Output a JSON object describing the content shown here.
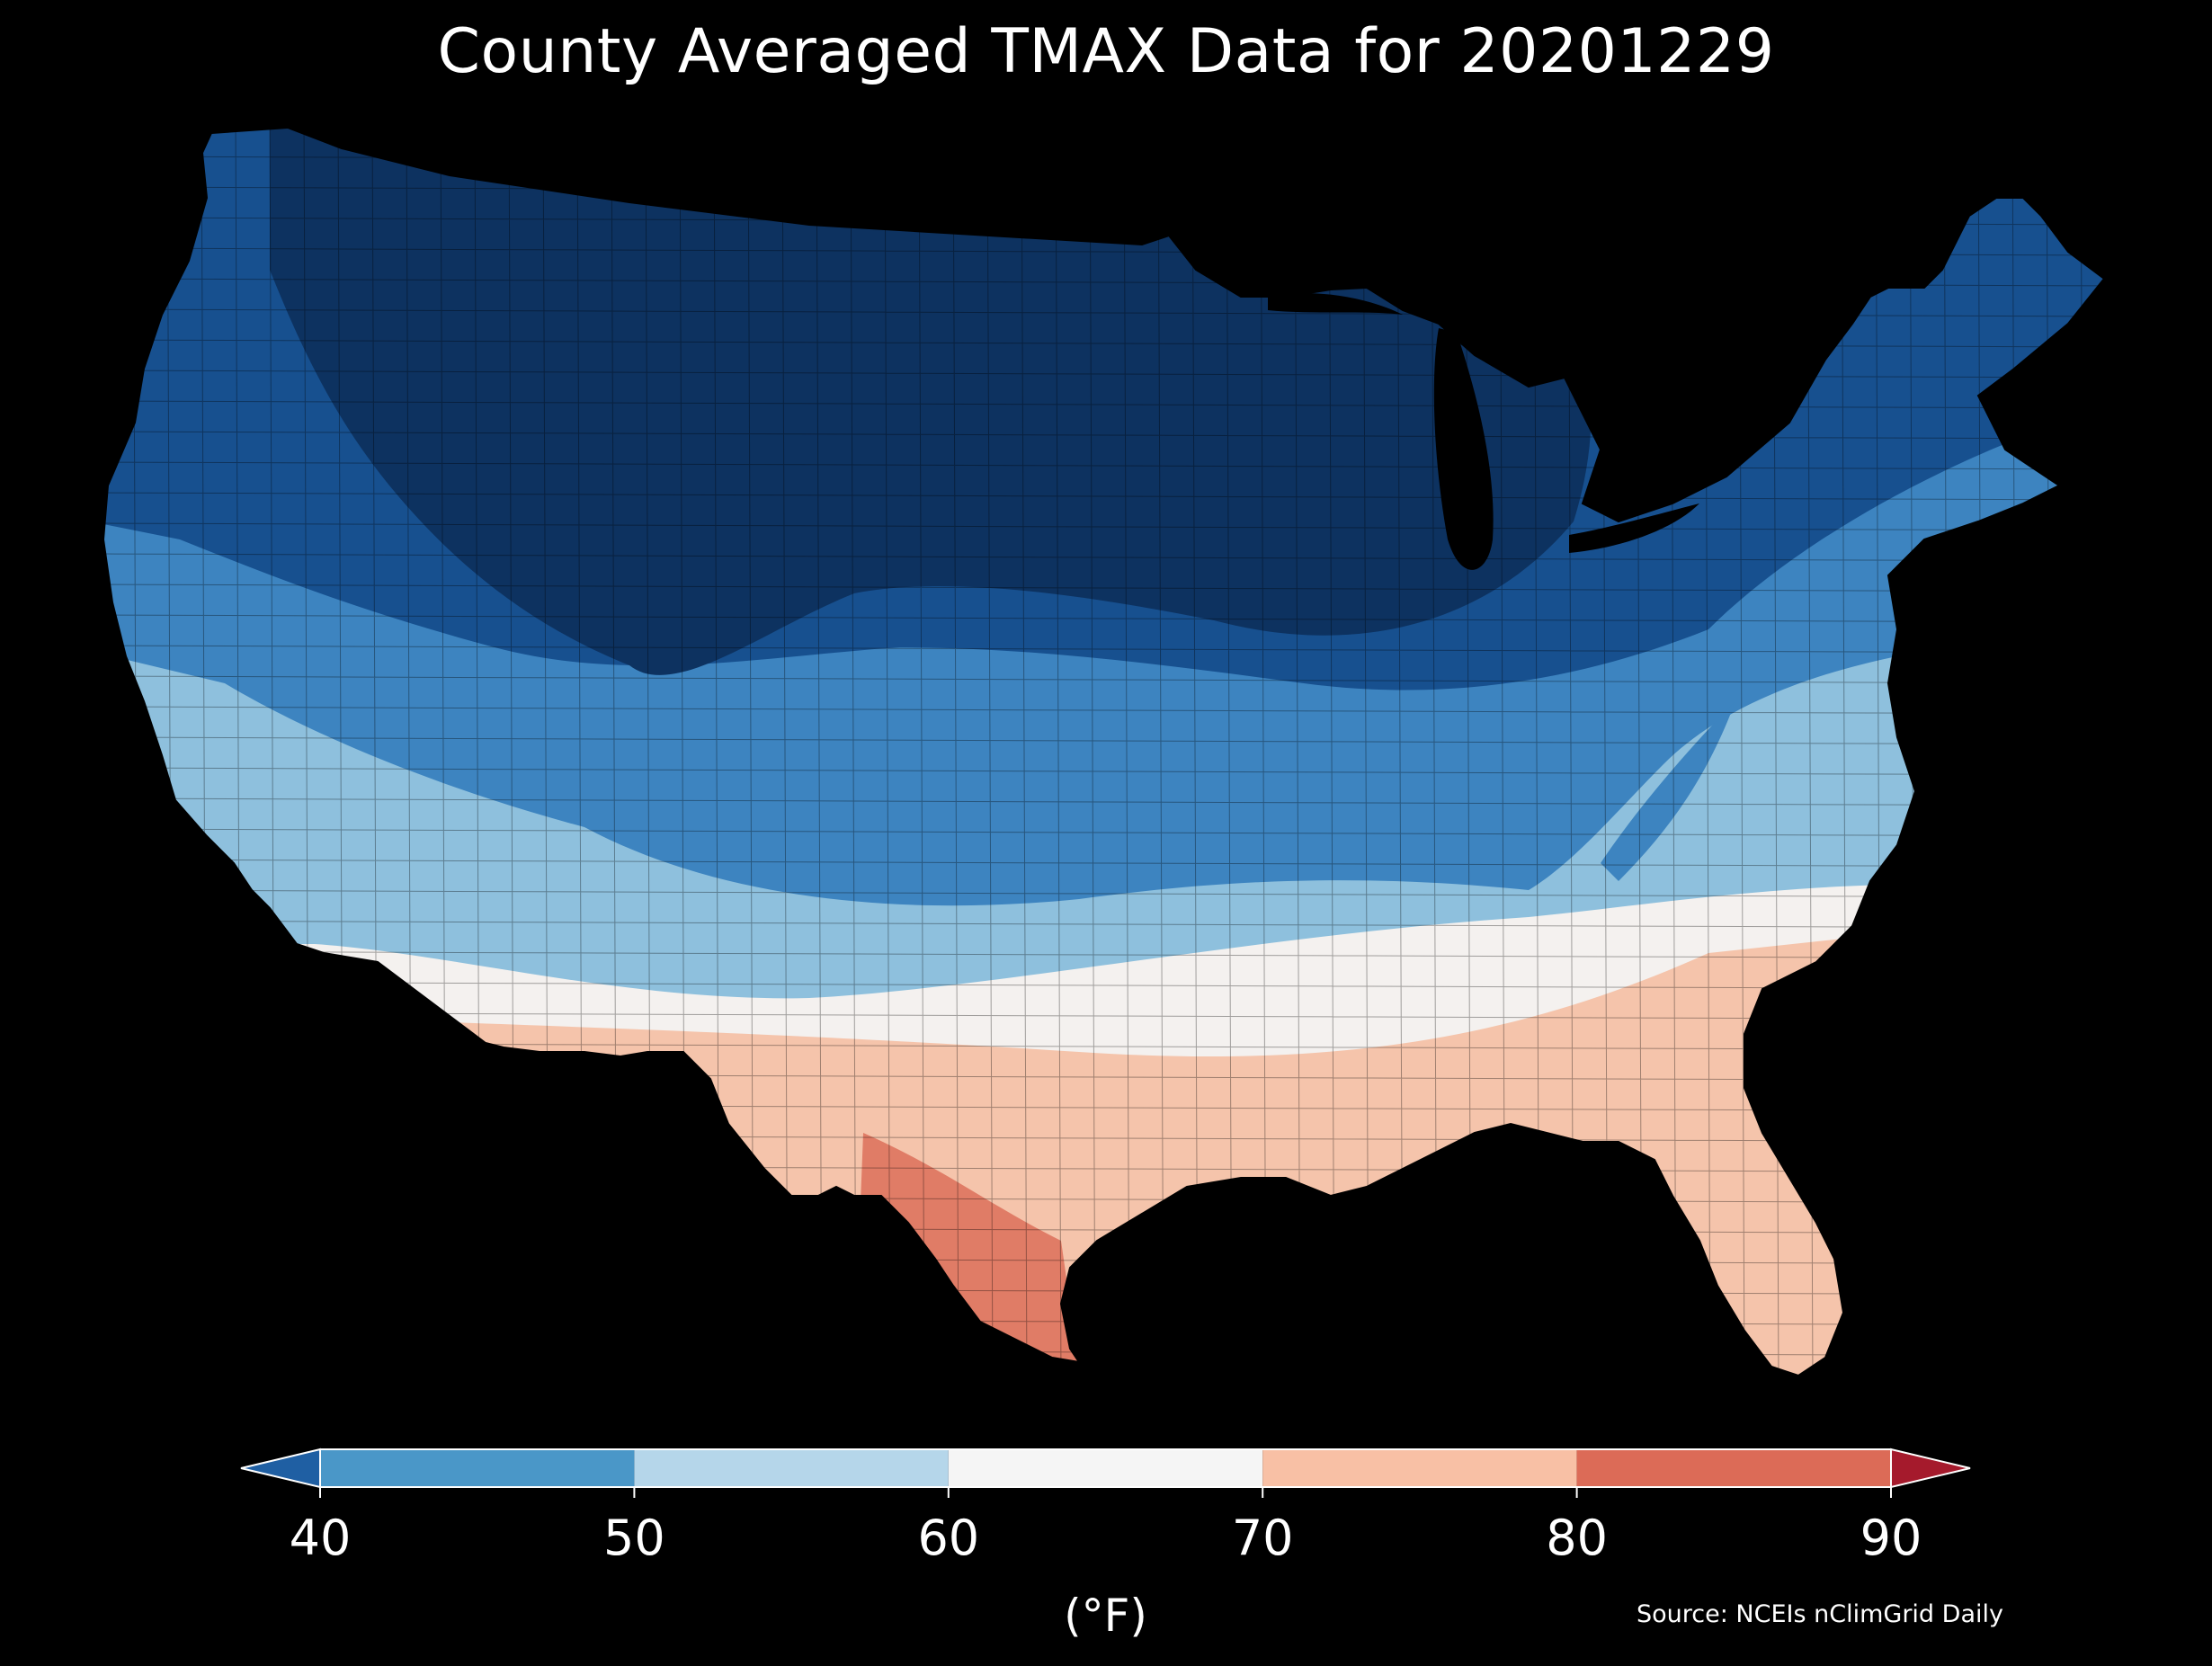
{
  "title": "County Averaged TMAX Data for 20201229",
  "source": "Source: NCEIs nClimGrid Daily",
  "colorbar": {
    "unit_label": "(°F)",
    "ticks": [
      "40",
      "50",
      "60",
      "70",
      "80",
      "90"
    ],
    "tick_values": [
      40,
      50,
      60,
      70,
      80,
      90
    ],
    "under_color": "#1f5fa3",
    "over_color": "#a51a2c",
    "bins": [
      {
        "from": 40,
        "to": 50,
        "color": "#4a97c8"
      },
      {
        "from": 50,
        "to": 60,
        "color": "#b5d6ea"
      },
      {
        "from": 60,
        "to": 70,
        "color": "#f5f5f5"
      },
      {
        "from": 70,
        "to": 80,
        "color": "#f8c0a5"
      },
      {
        "from": 80,
        "to": 90,
        "color": "#dc6b57"
      }
    ]
  },
  "map": {
    "region": "contiguous-united-states",
    "background": "#000000",
    "colors": {
      "coldest": "#0d3260",
      "cold": "#17508f",
      "cool": "#3d84c0",
      "mild": "#8ec0dd",
      "neutral": "#f4f1ef",
      "warm": "#f5c4ab",
      "hot": "#e07c66"
    }
  }
}
